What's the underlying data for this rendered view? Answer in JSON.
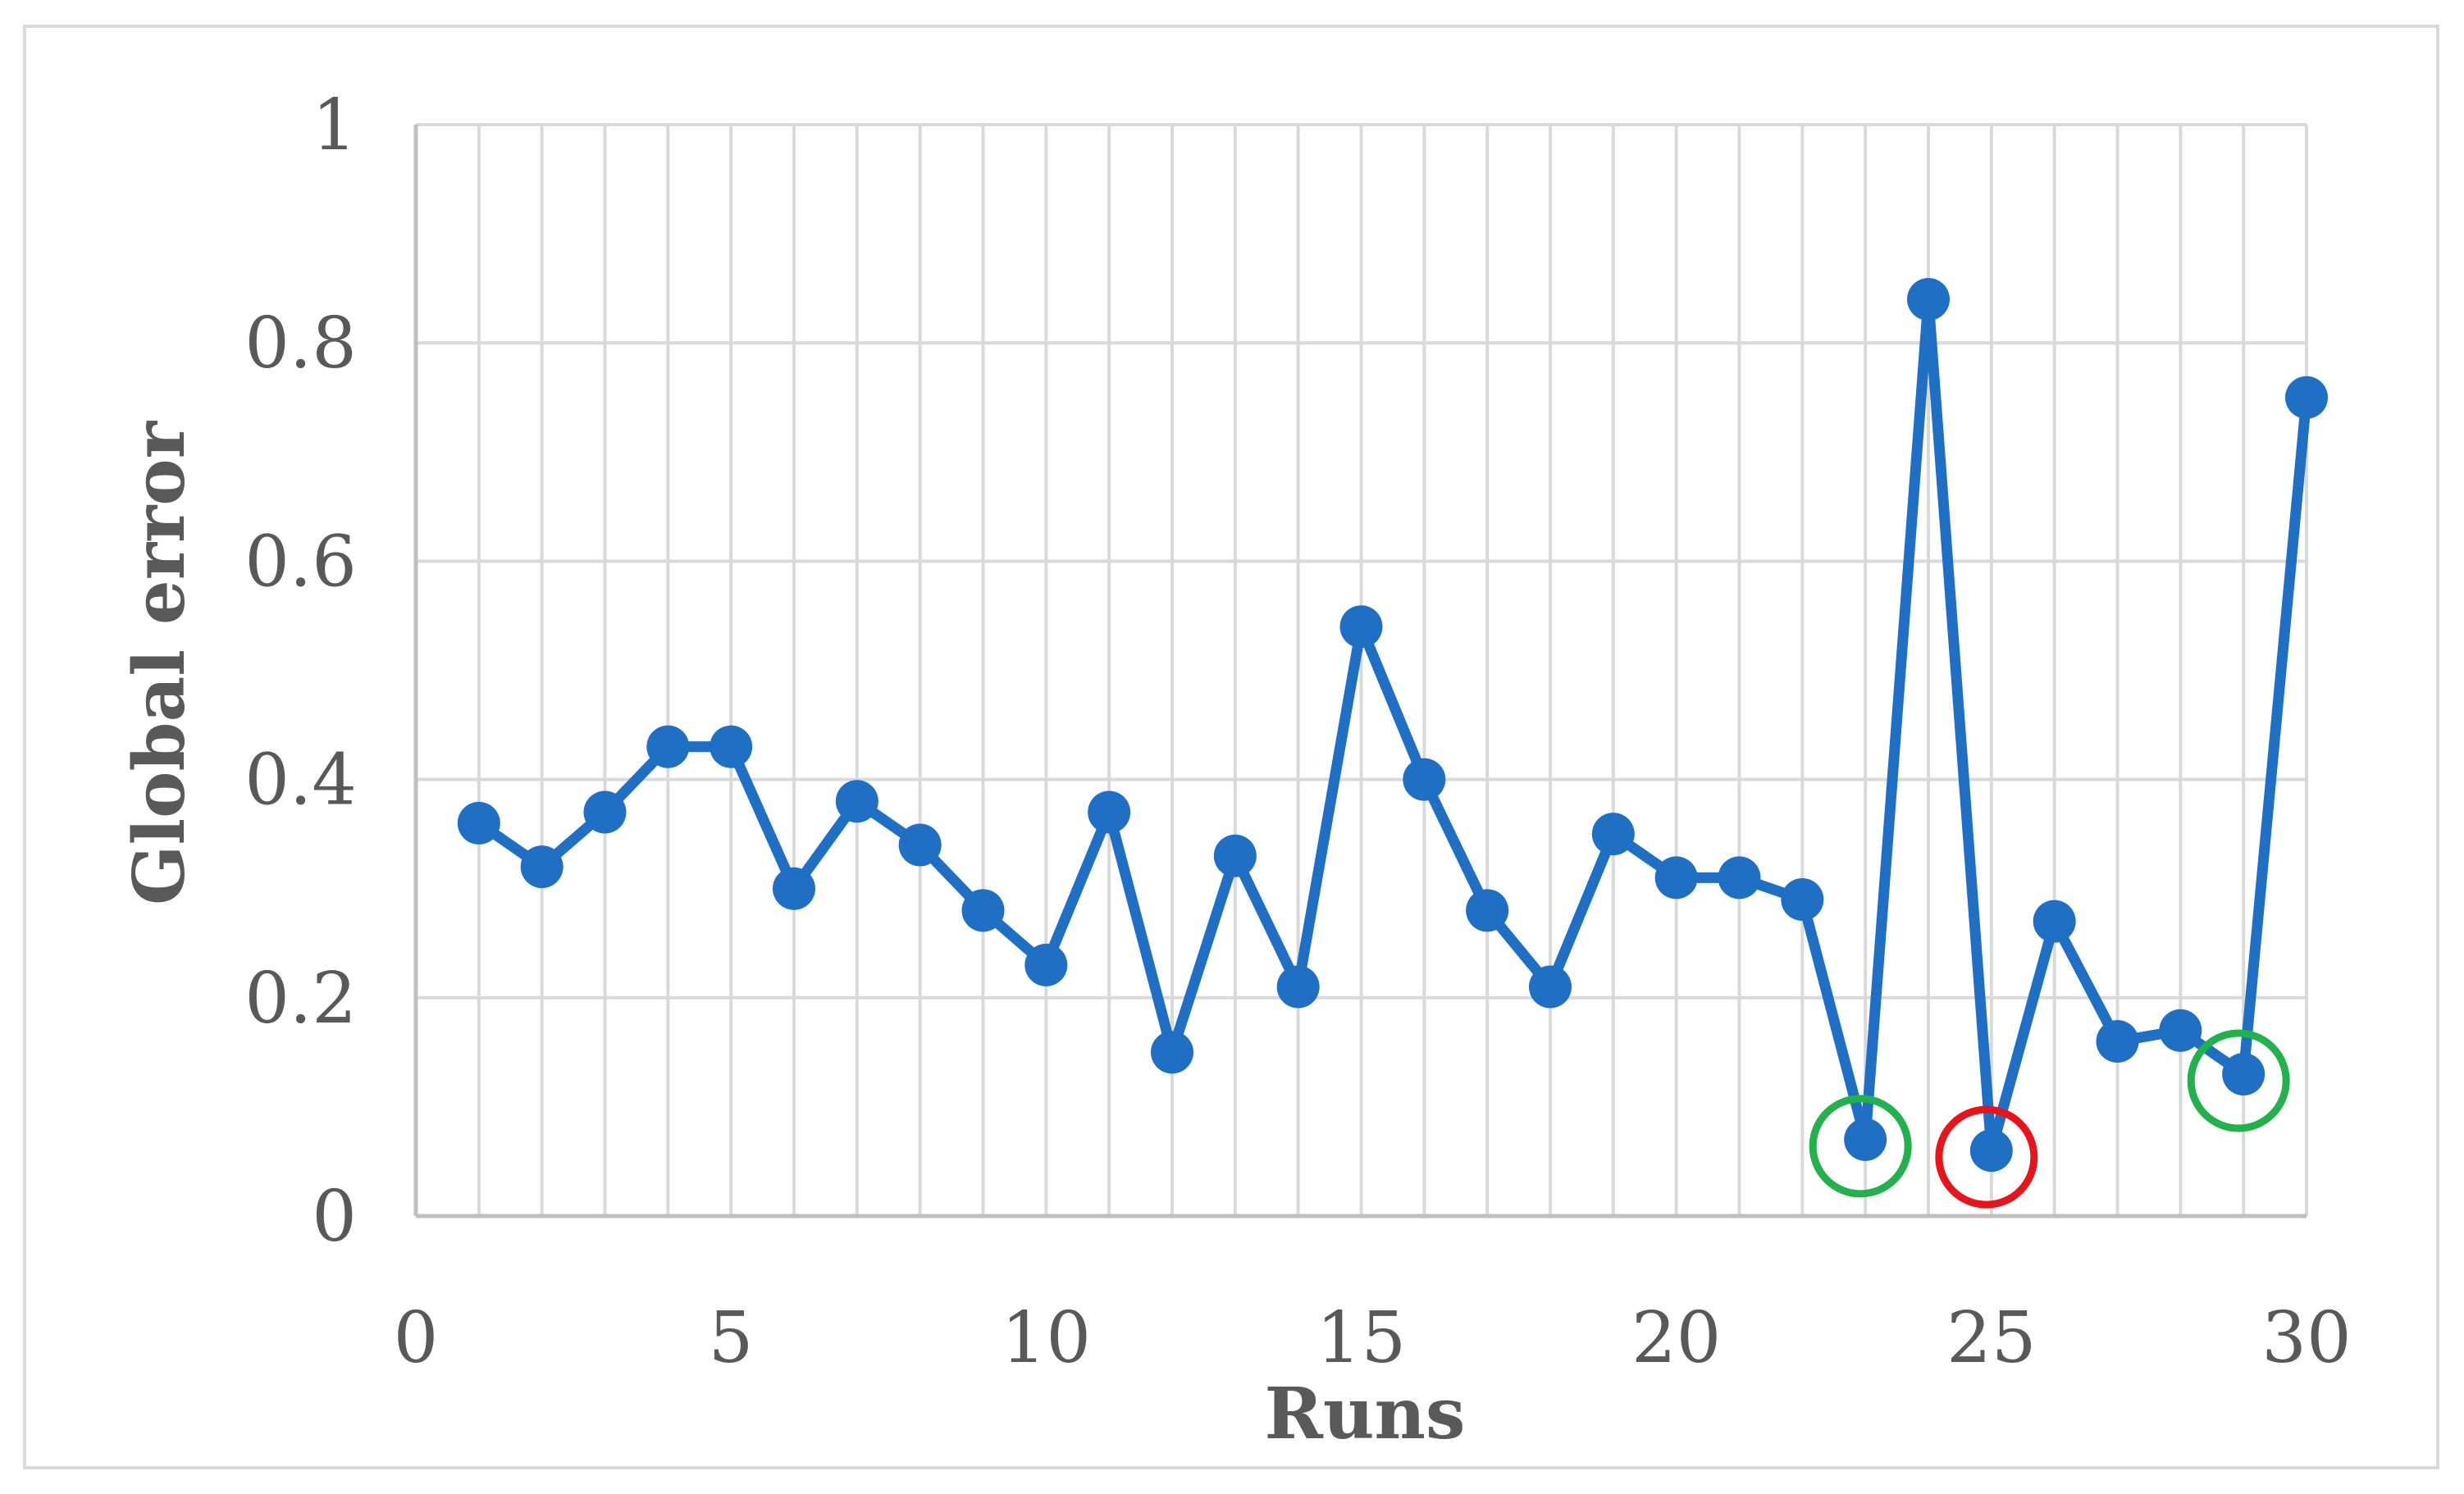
{
  "chart_data": {
    "type": "line",
    "title": "",
    "xlabel": "Runs",
    "ylabel": "Global error",
    "xlim": [
      0,
      30
    ],
    "ylim": [
      0,
      1
    ],
    "x_ticks": [
      0,
      5,
      10,
      15,
      20,
      25,
      30
    ],
    "y_ticks": [
      0,
      0.2,
      0.4,
      0.6,
      0.8,
      1
    ],
    "y_tick_labels": [
      "0",
      "0.2",
      "0.4",
      "0.6",
      "0.8",
      "1"
    ],
    "grid": "vertical every 1 run, horizontal every 0.2",
    "legend": "none",
    "series": [
      {
        "color": "#1f6fc5",
        "x": [
          1,
          2,
          3,
          4,
          5,
          6,
          7,
          8,
          9,
          10,
          11,
          12,
          13,
          14,
          15,
          16,
          17,
          18,
          19,
          20,
          21,
          22,
          23,
          24,
          25,
          26,
          27,
          28,
          29,
          30
        ],
        "values": [
          0.36,
          0.32,
          0.37,
          0.43,
          0.43,
          0.3,
          0.38,
          0.34,
          0.28,
          0.23,
          0.37,
          0.15,
          0.33,
          0.21,
          0.54,
          0.4,
          0.28,
          0.21,
          0.35,
          0.31,
          0.31,
          0.29,
          0.07,
          0.84,
          0.06,
          0.27,
          0.16,
          0.17,
          0.13,
          0.75
        ]
      }
    ],
    "annotations": [
      {
        "type": "circle",
        "x": 23,
        "y": 0.07,
        "color": "#22b14c"
      },
      {
        "type": "circle",
        "x": 25,
        "y": 0.06,
        "color": "#e8141c"
      },
      {
        "type": "circle",
        "x": 29,
        "y": 0.13,
        "color": "#22b14c"
      }
    ],
    "colors": {
      "gridline": "#d9d9d9",
      "axis": "#bfbfbf",
      "text": "#595959"
    }
  }
}
